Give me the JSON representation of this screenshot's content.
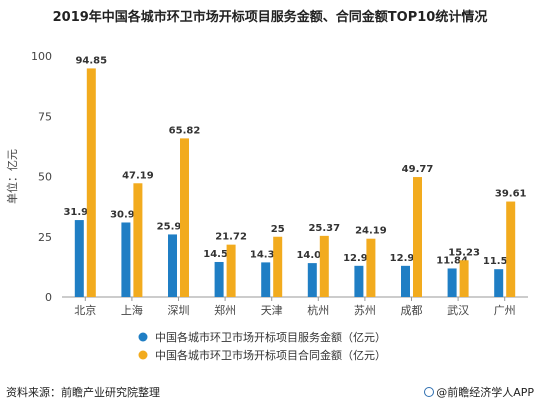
{
  "chart_data": {
    "type": "bar",
    "title": "2019年中国各城市环卫市场开标项目服务金额、合同金额TOP10统计情况",
    "ylabel": "单位：亿元",
    "ylim": [
      0,
      100
    ],
    "yticks": [
      0,
      25,
      50,
      75,
      100
    ],
    "grid": false,
    "legend_position": "bottom",
    "categories": [
      "北京",
      "上海",
      "深圳",
      "郑州",
      "天津",
      "杭州",
      "苏州",
      "成都",
      "武汉",
      "广州"
    ],
    "series": [
      {
        "name": "中国各城市环卫市场开标项目服务金额（亿元）",
        "color": "#1f7ec4",
        "values": [
          31.92,
          30.92,
          25.96,
          14.53,
          14.36,
          14.06,
          12.94,
          12.93,
          11.84,
          11.54
        ]
      },
      {
        "name": "中国各城市环卫市场开标项目合同金额（亿元）",
        "color": "#f2ab1e",
        "values": [
          94.85,
          47.19,
          65.82,
          21.72,
          25,
          25.37,
          24.19,
          49.77,
          15.23,
          39.61
        ]
      }
    ]
  },
  "footer": {
    "source": "资料来源：前瞻产业研究院整理",
    "brand": "@前瞻经济学人APP",
    "brand_icon": "qianzhan-logo-icon"
  }
}
